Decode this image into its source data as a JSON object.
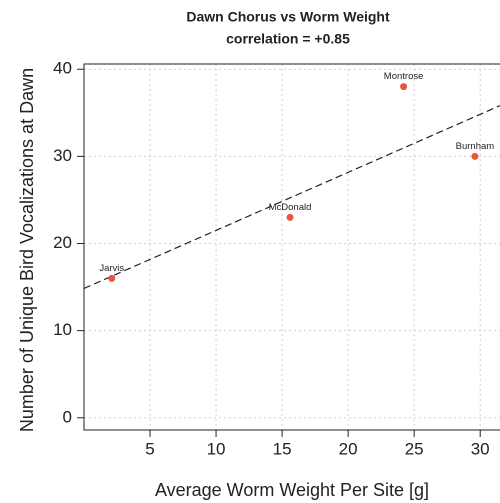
{
  "chart_data": {
    "type": "scatter",
    "title": "Dawn Chorus vs Worm Weight",
    "subtitle": "correlation = +0.85",
    "x_label": "Average Worm Weight Per Site [g]",
    "y_label": "Number of Unique Bird Vocalizations at Dawn",
    "x": [
      2.1,
      15.6,
      24.2,
      29.6
    ],
    "values": [
      16,
      23,
      38,
      30
    ],
    "point_labels": [
      "Jarvis",
      "McDonald",
      "Montrose",
      "Burnham"
    ],
    "color": "#e8553a",
    "xlim": [
      0,
      31.5
    ],
    "xticks": [
      5,
      10,
      15,
      20,
      25,
      30
    ],
    "ylim": [
      -1.4,
      40.6
    ],
    "yticks": [
      0,
      10,
      20,
      30,
      40
    ],
    "grid": true,
    "trendline": true
  }
}
